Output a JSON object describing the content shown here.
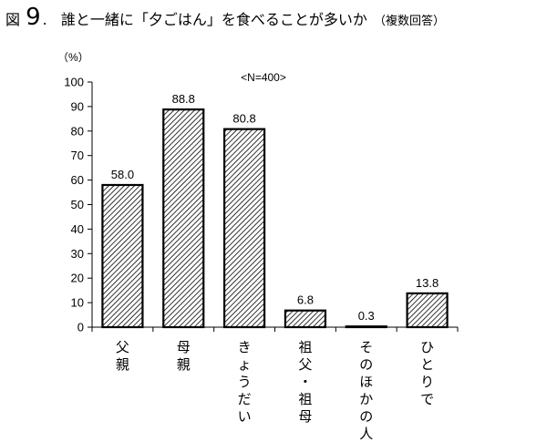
{
  "title": {
    "prefix": "図",
    "number": "9",
    "main": "誰と一緒に「夕ごはん」を食べることが多いか",
    "note": "（複数回答）"
  },
  "chart_data": {
    "type": "bar",
    "unit_label": "（%）",
    "annotation": "<N=400>",
    "categories": [
      "父親",
      "母親",
      "きょうだい",
      "祖父・祖母",
      "そのほかの人",
      "ひとりで"
    ],
    "values": [
      58.0,
      88.8,
      80.8,
      6.8,
      0.3,
      13.8
    ],
    "value_labels": [
      "58.0",
      "88.8",
      "80.8",
      "6.8",
      "0.3",
      "13.8"
    ],
    "yticks": [
      0,
      10,
      20,
      30,
      40,
      50,
      60,
      70,
      80,
      90,
      100
    ],
    "ylim": [
      0,
      100
    ],
    "grid": false,
    "bar_fill": "diagonal-hatch"
  }
}
